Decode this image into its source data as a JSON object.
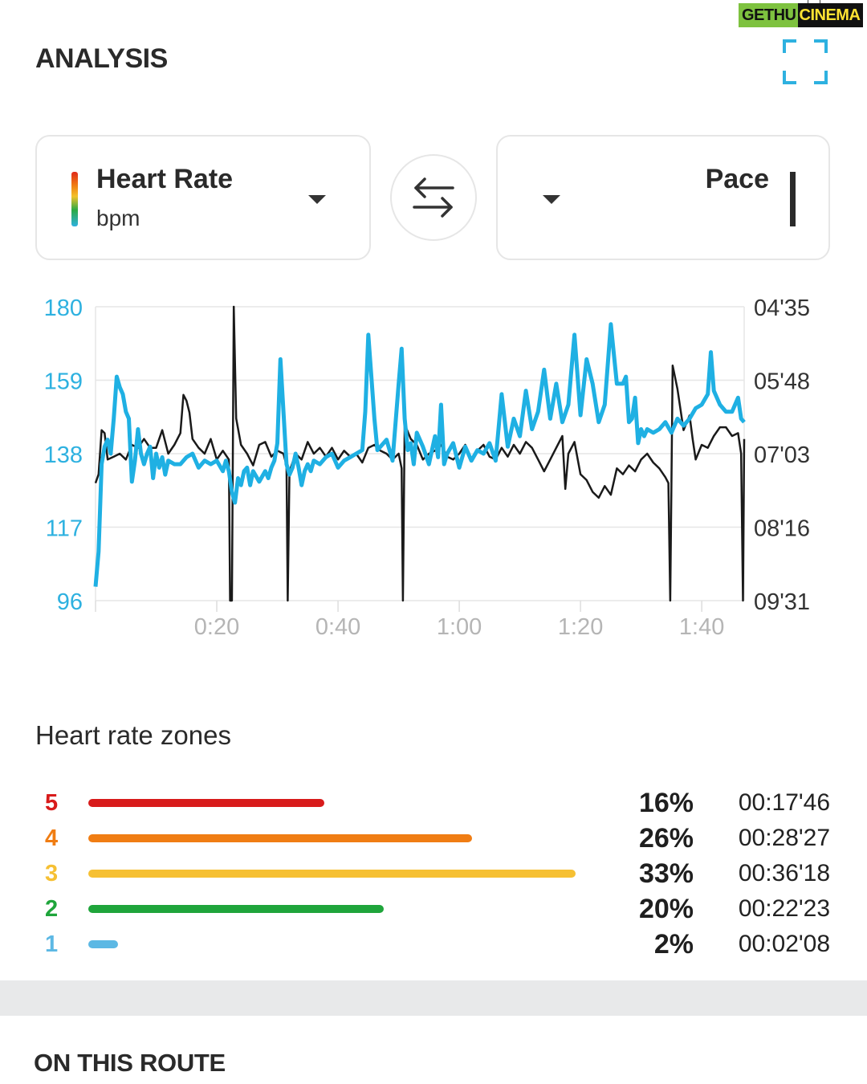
{
  "watermark": {
    "part1": "GETHU",
    "part2": "CINEMA"
  },
  "analysis": {
    "title": "ANALYSIS",
    "left_metric": {
      "title": "Heart Rate",
      "unit": "bpm"
    },
    "right_metric": {
      "title": "Pace"
    }
  },
  "colors": {
    "accent": "#2eb1e0",
    "hr_line": "#1fb0e3",
    "pace_line": "#1a1a1a",
    "zone5": "#d81b1b",
    "zone4": "#f07d13",
    "zone3": "#f6c033",
    "zone2": "#1fa53b",
    "zone1": "#5cb8e4"
  },
  "icons": {
    "expand": "expand-icon",
    "swap": "swap-arrows-icon",
    "dropdown": "chevron-down-icon"
  },
  "chart_data": {
    "type": "line",
    "x_tick_labels": [
      "0:20",
      "0:40",
      "1:00",
      "1:20",
      "1:40"
    ],
    "x_ticks_minutes": [
      20,
      40,
      60,
      80,
      100
    ],
    "xlim_minutes": [
      0,
      107
    ],
    "left_axis": {
      "ticks": [
        180,
        159,
        138,
        117,
        96
      ],
      "ylim": [
        96,
        180
      ]
    },
    "right_axis": {
      "ticks": [
        "04'35",
        "05'48",
        "07'03",
        "08'16",
        "09'31"
      ]
    },
    "grid": true,
    "series": [
      {
        "name": "Heart Rate",
        "axis": "left",
        "points": [
          [
            0,
            100
          ],
          [
            0.5,
            110
          ],
          [
            1,
            135
          ],
          [
            1.5,
            140
          ],
          [
            2,
            142
          ],
          [
            2.5,
            138
          ],
          [
            3,
            148
          ],
          [
            3.5,
            160
          ],
          [
            4,
            157
          ],
          [
            4.5,
            155
          ],
          [
            5,
            150
          ],
          [
            5.5,
            148
          ],
          [
            6,
            130
          ],
          [
            6.5,
            136
          ],
          [
            7,
            145
          ],
          [
            7.5,
            138
          ],
          [
            8,
            135
          ],
          [
            8.5,
            138
          ],
          [
            9,
            140
          ],
          [
            9.5,
            131
          ],
          [
            10,
            138
          ],
          [
            10.5,
            134
          ],
          [
            11,
            137
          ],
          [
            11.5,
            132
          ],
          [
            12,
            136
          ],
          [
            13,
            135
          ],
          [
            14,
            135
          ],
          [
            15,
            137
          ],
          [
            16,
            138
          ],
          [
            17,
            134
          ],
          [
            18,
            136
          ],
          [
            19,
            135
          ],
          [
            20,
            136
          ],
          [
            21,
            133
          ],
          [
            21.5,
            136
          ],
          [
            22,
            133
          ],
          [
            22.5,
            127
          ],
          [
            23,
            124
          ],
          [
            23.5,
            131
          ],
          [
            24,
            129
          ],
          [
            24.5,
            133
          ],
          [
            25,
            134
          ],
          [
            25.5,
            129
          ],
          [
            26,
            133
          ],
          [
            27,
            130
          ],
          [
            28,
            133
          ],
          [
            28.5,
            131
          ],
          [
            29,
            134
          ],
          [
            29.5,
            136
          ],
          [
            30,
            141
          ],
          [
            30.5,
            165
          ],
          [
            31,
            150
          ],
          [
            31.5,
            135
          ],
          [
            32,
            132
          ],
          [
            32.5,
            134
          ],
          [
            33,
            138
          ],
          [
            33.5,
            134
          ],
          [
            34,
            129
          ],
          [
            34.5,
            133
          ],
          [
            35,
            135
          ],
          [
            35.5,
            133
          ],
          [
            36,
            136
          ],
          [
            37,
            135
          ],
          [
            38,
            137
          ],
          [
            39,
            138
          ],
          [
            40,
            134
          ],
          [
            41,
            136
          ],
          [
            42,
            137
          ],
          [
            43,
            138
          ],
          [
            44,
            139
          ],
          [
            44.5,
            150
          ],
          [
            45,
            172
          ],
          [
            45.5,
            160
          ],
          [
            46,
            148
          ],
          [
            46.5,
            139
          ],
          [
            47,
            140
          ],
          [
            48,
            142
          ],
          [
            49,
            136
          ],
          [
            50,
            158
          ],
          [
            50.5,
            168
          ],
          [
            51,
            148
          ],
          [
            51.5,
            139
          ],
          [
            52,
            141
          ],
          [
            52.5,
            135
          ],
          [
            53,
            144
          ],
          [
            54,
            140
          ],
          [
            55,
            135
          ],
          [
            56,
            143
          ],
          [
            56.5,
            137
          ],
          [
            57,
            152
          ],
          [
            57.5,
            135
          ],
          [
            58,
            138
          ],
          [
            59,
            141
          ],
          [
            60,
            134
          ],
          [
            61,
            140
          ],
          [
            62,
            136
          ],
          [
            63,
            139
          ],
          [
            64,
            138
          ],
          [
            65,
            141
          ],
          [
            66,
            136
          ],
          [
            67,
            155
          ],
          [
            68,
            140
          ],
          [
            69,
            148
          ],
          [
            70,
            143
          ],
          [
            71,
            156
          ],
          [
            72,
            145
          ],
          [
            73,
            150
          ],
          [
            74,
            162
          ],
          [
            75,
            148
          ],
          [
            76,
            158
          ],
          [
            77,
            147
          ],
          [
            78,
            152
          ],
          [
            79,
            172
          ],
          [
            80,
            149
          ],
          [
            81,
            165
          ],
          [
            82,
            158
          ],
          [
            83,
            147
          ],
          [
            84,
            152
          ],
          [
            85,
            175
          ],
          [
            86,
            158
          ],
          [
            87,
            158
          ],
          [
            87.5,
            160
          ],
          [
            88,
            147
          ],
          [
            88.5,
            148
          ],
          [
            89,
            154
          ],
          [
            89.5,
            141
          ],
          [
            90,
            145
          ],
          [
            90.5,
            143
          ],
          [
            91,
            145
          ],
          [
            92,
            144
          ],
          [
            93,
            145
          ],
          [
            94,
            147
          ],
          [
            95,
            144
          ],
          [
            96,
            148
          ],
          [
            97,
            146
          ],
          [
            98,
            148
          ],
          [
            99,
            151
          ],
          [
            100,
            152
          ],
          [
            101,
            155
          ],
          [
            101.5,
            167
          ],
          [
            102,
            156
          ],
          [
            103,
            152
          ],
          [
            104,
            150
          ],
          [
            105,
            150
          ],
          [
            106,
            154
          ],
          [
            106.5,
            148
          ],
          [
            107,
            147
          ]
        ]
      },
      {
        "name": "Pace",
        "axis": "right",
        "points_rel": [
          [
            0,
            0.6
          ],
          [
            0.5,
            0.57
          ],
          [
            1,
            0.42
          ],
          [
            1.5,
            0.43
          ],
          [
            2,
            0.52
          ],
          [
            3,
            0.51
          ],
          [
            4,
            0.5
          ],
          [
            5,
            0.52
          ],
          [
            6,
            0.47
          ],
          [
            7,
            0.48
          ],
          [
            8,
            0.45
          ],
          [
            9,
            0.48
          ],
          [
            10,
            0.48
          ],
          [
            11,
            0.42
          ],
          [
            12,
            0.5
          ],
          [
            13,
            0.47
          ],
          [
            14,
            0.43
          ],
          [
            14.5,
            0.3
          ],
          [
            15,
            0.32
          ],
          [
            15.5,
            0.36
          ],
          [
            16,
            0.45
          ],
          [
            17,
            0.48
          ],
          [
            18,
            0.5
          ],
          [
            19,
            0.45
          ],
          [
            20,
            0.52
          ],
          [
            21,
            0.49
          ],
          [
            22,
            0.52
          ],
          [
            22.2,
            1.0
          ],
          [
            22.5,
            1.0
          ],
          [
            22.8,
            0.0
          ],
          [
            23.2,
            0.38
          ],
          [
            24,
            0.47
          ],
          [
            25,
            0.5
          ],
          [
            26,
            0.54
          ],
          [
            27,
            0.47
          ],
          [
            28,
            0.46
          ],
          [
            29,
            0.51
          ],
          [
            30,
            0.49
          ],
          [
            31,
            0.5
          ],
          [
            31.5,
            0.54
          ],
          [
            31.7,
            1.0
          ],
          [
            32,
            0.56
          ],
          [
            33,
            0.5
          ],
          [
            34,
            0.52
          ],
          [
            35,
            0.46
          ],
          [
            36,
            0.5
          ],
          [
            37,
            0.48
          ],
          [
            38,
            0.51
          ],
          [
            39,
            0.48
          ],
          [
            40,
            0.52
          ],
          [
            41,
            0.49
          ],
          [
            42,
            0.51
          ],
          [
            43,
            0.5
          ],
          [
            44,
            0.53
          ],
          [
            45,
            0.48
          ],
          [
            46,
            0.47
          ],
          [
            47,
            0.49
          ],
          [
            48,
            0.5
          ],
          [
            49,
            0.52
          ],
          [
            50,
            0.5
          ],
          [
            50.5,
            0.55
          ],
          [
            50.7,
            1.0
          ],
          [
            51,
            0.4
          ],
          [
            52,
            0.45
          ],
          [
            53,
            0.47
          ],
          [
            54,
            0.52
          ],
          [
            55,
            0.5
          ],
          [
            56,
            0.49
          ],
          [
            57,
            0.47
          ],
          [
            58,
            0.51
          ],
          [
            59,
            0.52
          ],
          [
            60,
            0.5
          ],
          [
            61,
            0.47
          ],
          [
            62,
            0.52
          ],
          [
            63,
            0.49
          ],
          [
            64,
            0.47
          ],
          [
            65,
            0.51
          ],
          [
            66,
            0.52
          ],
          [
            67,
            0.48
          ],
          [
            68,
            0.51
          ],
          [
            69,
            0.47
          ],
          [
            70,
            0.5
          ],
          [
            71,
            0.46
          ],
          [
            72,
            0.48
          ],
          [
            73,
            0.52
          ],
          [
            74,
            0.56
          ],
          [
            75,
            0.52
          ],
          [
            76,
            0.48
          ],
          [
            77,
            0.44
          ],
          [
            77.5,
            0.62
          ],
          [
            78,
            0.5
          ],
          [
            79,
            0.46
          ],
          [
            80,
            0.57
          ],
          [
            81,
            0.59
          ],
          [
            82,
            0.63
          ],
          [
            83,
            0.65
          ],
          [
            84,
            0.61
          ],
          [
            85,
            0.64
          ],
          [
            86,
            0.55
          ],
          [
            87,
            0.57
          ],
          [
            88,
            0.54
          ],
          [
            89,
            0.56
          ],
          [
            90,
            0.52
          ],
          [
            91,
            0.5
          ],
          [
            92,
            0.53
          ],
          [
            93,
            0.55
          ],
          [
            94,
            0.58
          ],
          [
            94.5,
            0.6
          ],
          [
            94.8,
            1.0
          ],
          [
            95.2,
            0.2
          ],
          [
            96,
            0.28
          ],
          [
            97,
            0.42
          ],
          [
            98,
            0.37
          ],
          [
            98.5,
            0.45
          ],
          [
            99,
            0.52
          ],
          [
            100,
            0.47
          ],
          [
            101,
            0.48
          ],
          [
            102,
            0.44
          ],
          [
            103,
            0.41
          ],
          [
            104,
            0.41
          ],
          [
            105,
            0.44
          ],
          [
            106,
            0.43
          ],
          [
            106.5,
            0.5
          ],
          [
            106.8,
            1.0
          ],
          [
            107,
            0.45
          ]
        ]
      }
    ]
  },
  "zones": {
    "title": "Heart rate zones",
    "rows": [
      {
        "zone": "5",
        "percent": "16%",
        "time": "00:17'46",
        "fraction": 0.16,
        "color": "#d81b1b"
      },
      {
        "zone": "4",
        "percent": "26%",
        "time": "00:28'27",
        "fraction": 0.26,
        "color": "#f07d13"
      },
      {
        "zone": "3",
        "percent": "33%",
        "time": "00:36'18",
        "fraction": 0.33,
        "color": "#f6c033"
      },
      {
        "zone": "2",
        "percent": "20%",
        "time": "00:22'23",
        "fraction": 0.2,
        "color": "#1fa53b"
      },
      {
        "zone": "1",
        "percent": "2%",
        "time": "00:02'08",
        "fraction": 0.02,
        "color": "#5cb8e4"
      }
    ]
  },
  "route": {
    "title": "ON THIS ROUTE"
  }
}
